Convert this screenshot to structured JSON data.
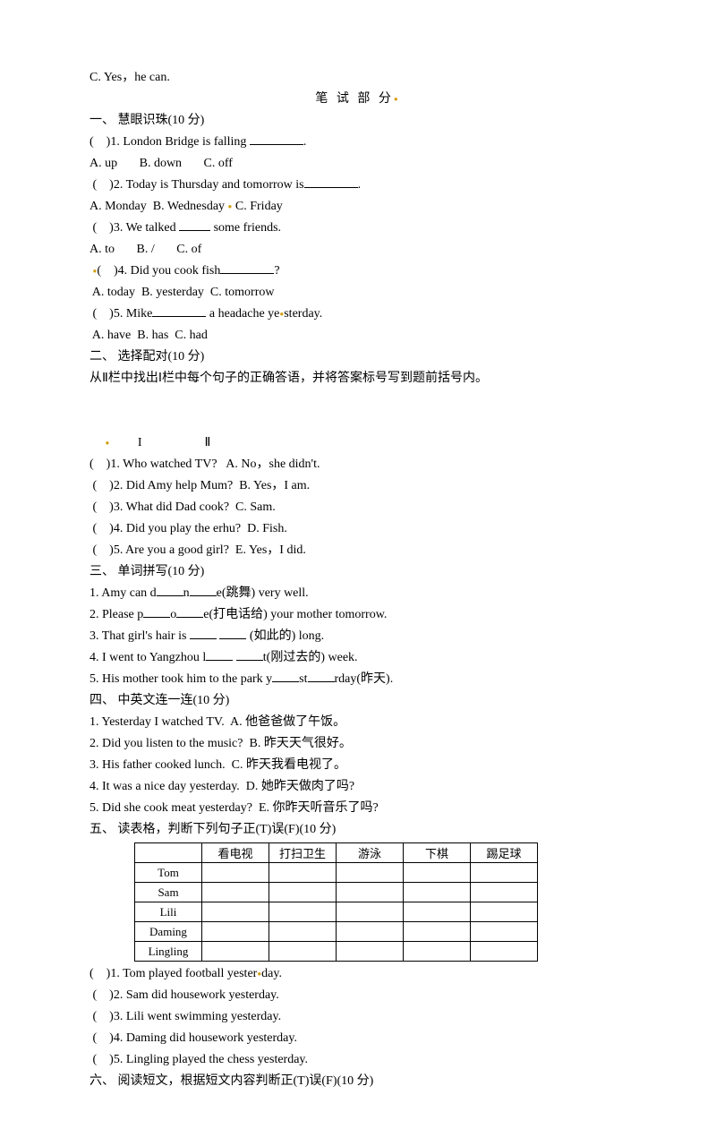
{
  "top_line": "C. Yes，he can.",
  "section_header": "笔 试 部 分",
  "sec1": {
    "title": "一、 慧眼识珠(10 分)",
    "q1": "(    )1. London Bridge is falling ",
    "q1_end": ".",
    "q1_opts": "A. up       B. down       C. off",
    "q2": " (    )2. Today is Thursday and tomorrow is",
    "q2_end": ".",
    "q2_opts_a": "A. Monday  B. Wednesday ",
    "q2_opts_b": " C. Friday",
    "q3": " (    )3. We talked ",
    "q3_end": " some friends.",
    "q3_opts": "A. to       B. /       C. of",
    "q4": "(    )4. Did you cook fish",
    "q4_end": "?",
    "q4_opts": " A. today  B. yesterday  C. tomorrow",
    "q5": " (    )5. Mike",
    "q5_mid": " a headache ye",
    "q5_end": "sterday.",
    "q5_opts": " A. have  B. has  C. had"
  },
  "sec2": {
    "title": "二、 选择配对(10 分)",
    "intro": "从Ⅱ栏中找出Ⅰ栏中每个句子的正确答语，并将答案标号写到题前括号内。",
    "header_prefix": "     ",
    "header_cols": "         I                    Ⅱ",
    "q1": "(    )1. Who watched TV?   A. No，she didn't.",
    "q2": " (    )2. Did Amy help Mum?  B. Yes，I am.",
    "q3": " (    )3. What did Dad cook?  C. Sam.",
    "q4": " (    )4. Did you play the erhu?  D. Fish.",
    "q5": " (    )5. Are you a good girl?  E. Yes，I did."
  },
  "sec3": {
    "title": "三、 单词拼写(10 分)",
    "q1_a": "1. Amy can d",
    "q1_b": "n",
    "q1_c": "e(跳舞) very well.",
    "q2_a": "2. Please p",
    "q2_b": "o",
    "q2_c": "e(打电话给) your mother tomorrow.",
    "q3_a": "3. That girl's hair is ",
    "q3_b": " ",
    "q3_c": " (如此的) long.",
    "q4_a": "4. I went to Yangzhou l",
    "q4_b": " ",
    "q4_c": "t(刚过去的) week.",
    "q5_a": "5. His mother took him to the park y",
    "q5_b": "st",
    "q5_c": "rday(昨天)."
  },
  "sec4": {
    "title": "四、 中英文连一连(10 分)",
    "q1": "1. Yesterday I watched TV.  A. 他爸爸做了午饭。",
    "q2": "2. Did you listen to the music?  B. 昨天天气很好。",
    "q3": "3. His father cooked lunch.  C. 昨天我看电视了。",
    "q4": "4. It was a nice day yesterday.  D. 她昨天做肉了吗?",
    "q5": "5. Did she cook meat yesterday?  E. 你昨天听音乐了吗?"
  },
  "sec5": {
    "title": "五、 读表格，判断下列句子正(T)误(F)(10 分)",
    "table": {
      "headers": [
        "",
        "看电视",
        "打扫卫生",
        "游泳",
        "下棋",
        "踢足球"
      ],
      "rows": [
        "Tom",
        "Sam",
        "Lili",
        "Daming",
        "Lingling"
      ]
    },
    "q1_a": "(    )1. Tom played football yester",
    "q1_b": "day.",
    "q2": " (    )2. Sam did housework yesterday.",
    "q3": " (    )3. Lili went swimming yesterday.",
    "q4": " (    )4. Daming did housework yesterday.",
    "q5": " (    )5. Lingling played the chess yesterday."
  },
  "sec6": {
    "title": "六、 阅读短文，根据短文内容判断正(T)误(F)(10 分)"
  }
}
